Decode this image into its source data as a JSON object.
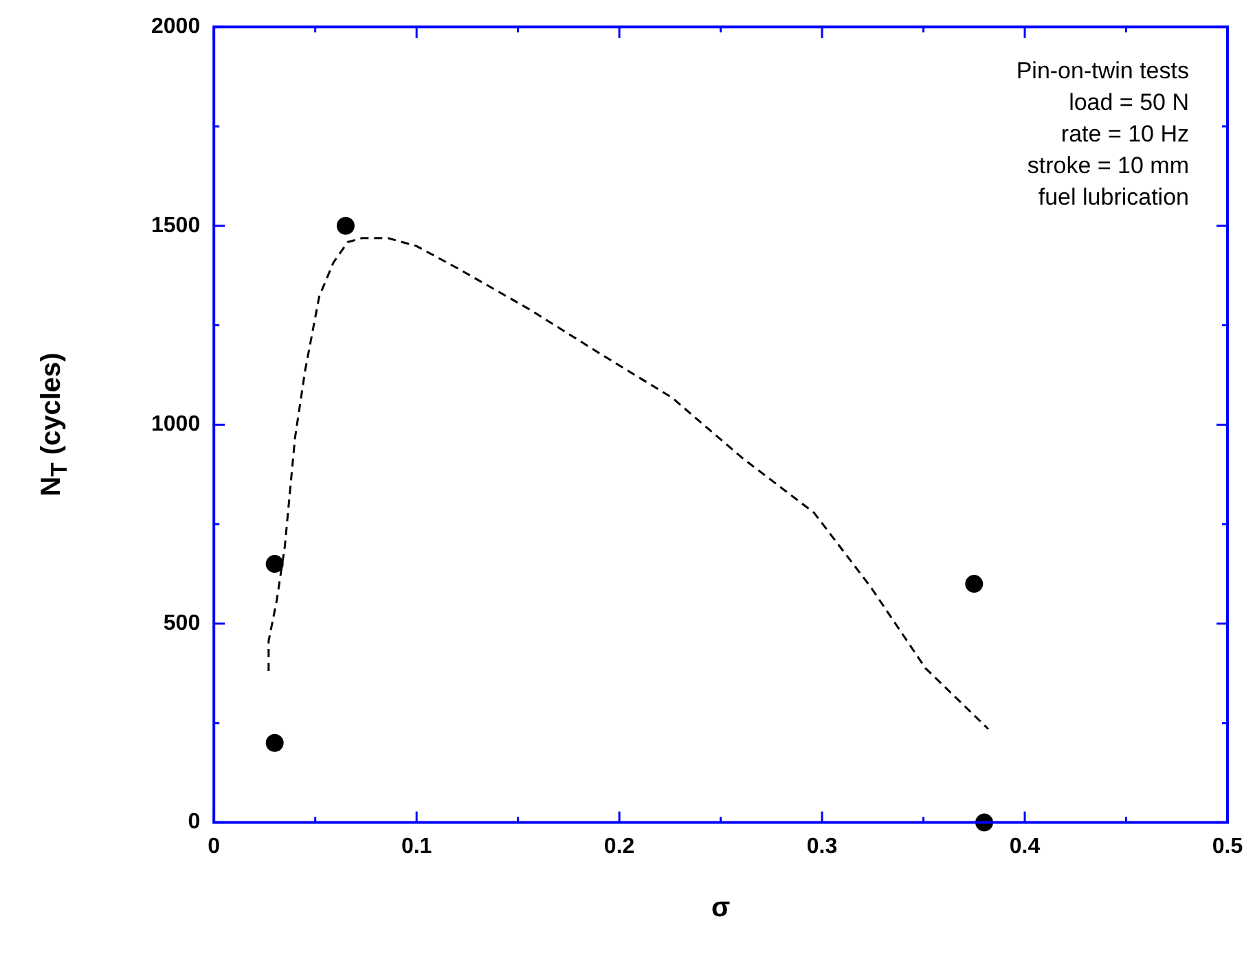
{
  "chart_data": {
    "type": "scatter",
    "xlabel": "σ",
    "ylabel": "N$_{T}$ (cycles)",
    "xlim": [
      0,
      0.5
    ],
    "xticks": [
      0,
      0.1,
      0.2,
      0.3,
      0.4,
      0.5
    ],
    "ylim": [
      0,
      2000
    ],
    "yticks": [
      0,
      500,
      1000,
      1500,
      2000
    ],
    "annotations": [
      "Pin-on-twin tests",
      "load = 50 N",
      "rate = 10 Hz",
      "stroke = 10 mm",
      "fuel lubrication"
    ],
    "series": [
      {
        "color": "#000000",
        "marker": "circle",
        "x": [
          0.03,
          0.03,
          0.065,
          0.375,
          0.38
        ],
        "values": [
          650,
          200,
          1500,
          600,
          0
        ]
      },
      {
        "type": "line",
        "color": "#000000",
        "line_style": "dashed",
        "marker": "none",
        "x": [
          0.027,
          0.027,
          0.031,
          0.035,
          0.04,
          0.045,
          0.052,
          0.059,
          0.066,
          0.073,
          0.086,
          0.1,
          0.121,
          0.156,
          0.191,
          0.226,
          0.261,
          0.296,
          0.324,
          0.351,
          0.382
        ],
        "values": [
          381,
          456,
          558,
          694,
          966,
          1136,
          1323,
          1408,
          1459,
          1469,
          1469,
          1449,
          1391,
          1289,
          1177,
          1068,
          915,
          779,
          592,
          388,
          235
        ]
      }
    ]
  }
}
